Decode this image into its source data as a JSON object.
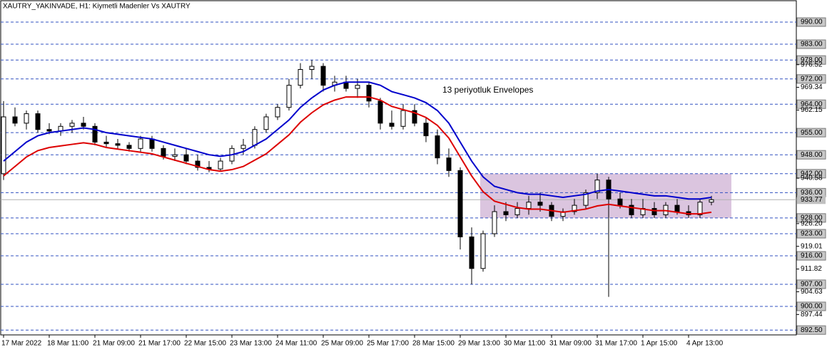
{
  "chart_data": {
    "type": "candlestick",
    "title": "XAUTRY_YAKINVADE, H1:  Kiymetli Madenler Vs XAUTRY",
    "annotation": "13 periyotluk Envelopes",
    "categories": [
      "17 Mar 2022",
      null,
      null,
      null,
      "18 Mar 11:00",
      null,
      null,
      null,
      "21 Mar 09:00",
      null,
      null,
      null,
      "21 Mar 17:00",
      null,
      null,
      null,
      "22 Mar 15:00",
      null,
      null,
      null,
      "23 Mar 13:00",
      null,
      null,
      null,
      "24 Mar 11:00",
      null,
      null,
      null,
      "25 Mar 09:00",
      null,
      null,
      null,
      "25 Mar 17:00",
      null,
      null,
      null,
      "28 Mar 15:00",
      null,
      null,
      null,
      "29 Mar 13:00",
      null,
      null,
      null,
      "30 Mar 11:00",
      null,
      null,
      null,
      "31 Mar 09:00",
      null,
      null,
      null,
      "31 Mar 17:00",
      null,
      null,
      null,
      "1 Apr 15:00",
      null,
      null,
      null,
      "4 Apr 13:00",
      null,
      null
    ],
    "open": [
      942,
      960,
      958,
      961,
      956,
      955.5,
      957,
      958,
      957,
      952,
      951.5,
      951,
      950,
      953,
      950,
      947.5,
      948,
      946,
      944,
      943.5,
      946,
      950,
      951,
      956,
      960,
      963,
      970,
      975,
      976,
      970,
      971,
      969,
      970,
      965,
      958,
      957,
      962,
      958,
      954,
      947,
      943,
      922,
      912,
      923,
      930,
      929,
      931,
      933,
      932,
      928.5,
      930,
      932,
      936,
      940,
      934,
      932,
      929,
      931,
      929,
      932,
      930,
      929,
      933
    ],
    "high": [
      965,
      963,
      962,
      962,
      958,
      958,
      959,
      960,
      958,
      954,
      953,
      952,
      954,
      954,
      951,
      950,
      950,
      948,
      946,
      947,
      951,
      953,
      957,
      961,
      964,
      972,
      977,
      978,
      977,
      973,
      973,
      972,
      971,
      966,
      962,
      964,
      964,
      960,
      956,
      950,
      944,
      925,
      924,
      932,
      933,
      933,
      935,
      936,
      933,
      931,
      934,
      937,
      942,
      941,
      936,
      934,
      934,
      933,
      933,
      934,
      932,
      934,
      935
    ],
    "low": [
      940,
      957,
      956,
      955,
      954.5,
      954,
      955,
      956,
      951,
      950.5,
      950,
      949,
      949,
      949,
      946.5,
      946,
      945,
      943,
      942.5,
      943,
      945,
      948,
      950,
      955,
      959,
      962,
      969,
      972,
      968,
      968,
      968,
      966,
      963,
      956,
      956,
      956,
      957,
      952,
      945,
      941,
      918,
      907,
      911,
      922,
      927,
      928,
      929,
      930,
      927,
      927,
      929,
      931,
      934,
      903,
      931,
      928,
      928,
      928,
      928,
      929,
      928,
      928,
      932
    ],
    "close": [
      960,
      958,
      961,
      956,
      955.5,
      957,
      958,
      957,
      952,
      951.5,
      951,
      950,
      953,
      950,
      947.5,
      948,
      946,
      944,
      943.5,
      946,
      950,
      951,
      956,
      960,
      963,
      970,
      975,
      976,
      970,
      971,
      969,
      970,
      965,
      958,
      957,
      962,
      958,
      954,
      947,
      943,
      922,
      912,
      923,
      930,
      929,
      931,
      933,
      932,
      928.5,
      930,
      932,
      936,
      940,
      934,
      932,
      929,
      931,
      929,
      932,
      930,
      929,
      933,
      933.77
    ],
    "lines": [
      {
        "color": "#0000cc",
        "values": [
          946,
          949,
          952,
          954,
          955,
          955.5,
          956,
          956.5,
          956,
          955,
          954.5,
          954,
          953.5,
          953,
          952,
          951,
          950,
          949,
          948,
          947.5,
          948,
          949,
          951,
          953,
          956,
          959,
          963,
          966,
          968.5,
          970,
          971,
          971,
          971,
          970,
          968,
          967,
          966,
          964.5,
          962,
          958,
          952,
          946,
          941,
          938,
          937,
          936,
          935.5,
          935.5,
          935,
          934.5,
          935,
          935.5,
          936.5,
          937,
          936.5,
          936,
          935.5,
          935,
          935,
          934.5,
          934,
          934,
          934.5
        ]
      },
      {
        "color": "#dd0000",
        "values": [
          941.3,
          944.3,
          947.3,
          949.3,
          950.3,
          950.8,
          951.3,
          951.8,
          951.3,
          950.3,
          949.8,
          949.3,
          948.8,
          948.3,
          947.3,
          946.3,
          945.3,
          944.3,
          943.3,
          942.8,
          943.3,
          944.3,
          946.3,
          948.3,
          951.3,
          954.3,
          958.3,
          961.3,
          963.8,
          965.3,
          966.3,
          966.3,
          966.3,
          965.3,
          963.3,
          962.3,
          961.3,
          959.8,
          957.3,
          953.3,
          947.3,
          941.3,
          936.3,
          933.3,
          932.3,
          931.3,
          930.8,
          930.8,
          930.3,
          929.8,
          930.3,
          930.8,
          931.8,
          932.3,
          931.8,
          931.3,
          930.8,
          930.3,
          930.3,
          929.8,
          929.3,
          929.3,
          929.8
        ]
      }
    ],
    "zone": {
      "low": 928,
      "high": 942,
      "color": "#d7bfdc"
    },
    "ylim": [
      890.97,
      996.77
    ],
    "yticks": [
      {
        "value": 976.52,
        "label": "976.52"
      },
      {
        "value": 969.34,
        "label": "969.34"
      },
      {
        "value": 962.15,
        "label": "962.15"
      },
      {
        "value": 940.58,
        "label": "940.58"
      },
      {
        "value": 926.2,
        "label": "926.20"
      },
      {
        "value": 919.01,
        "label": "919.01"
      },
      {
        "value": 911.82,
        "label": "911.82"
      },
      {
        "value": 904.63,
        "label": "904.63"
      },
      {
        "value": 897.44,
        "label": "897.44"
      }
    ],
    "levels": [
      {
        "value": 990,
        "label": "990.00"
      },
      {
        "value": 983,
        "label": "983.00"
      },
      {
        "value": 978,
        "label": "978.00"
      },
      {
        "value": 972,
        "label": "972.00"
      },
      {
        "value": 964,
        "label": "964.00"
      },
      {
        "value": 955,
        "label": "955.00"
      },
      {
        "value": 948,
        "label": "948.00"
      },
      {
        "value": 942,
        "label": "942.00"
      },
      {
        "value": 936,
        "label": "936.00"
      },
      {
        "value": 928,
        "label": "928.00"
      },
      {
        "value": 923,
        "label": "923.00"
      },
      {
        "value": 916,
        "label": "916.00"
      },
      {
        "value": 907,
        "label": "907.00"
      },
      {
        "value": 900,
        "label": "900.00"
      },
      {
        "value": 892.5,
        "label": "892.50"
      }
    ],
    "level_color": "#3050c0",
    "current_price": {
      "value": 933.77,
      "label": "933.77"
    }
  }
}
